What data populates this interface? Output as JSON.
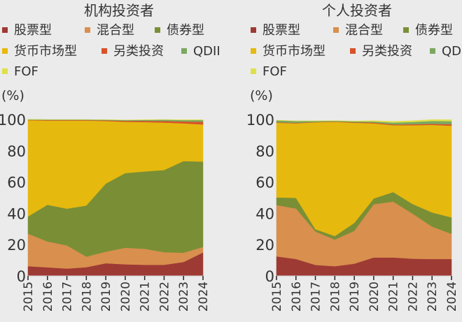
{
  "chart_data": [
    {
      "type": "area",
      "stacked": true,
      "title": "机构投资者",
      "ylabel": "(%)",
      "ylim": [
        0,
        100
      ],
      "yticks": [
        "0",
        "20",
        "40",
        "60",
        "80",
        "100"
      ],
      "categories": [
        "2015",
        "2016",
        "2017",
        "2018",
        "2019",
        "2020",
        "2021",
        "2022",
        "2023",
        "2024"
      ],
      "grid": false,
      "series": [
        {
          "name": "股票型",
          "color": "#9e3a34",
          "values": [
            6.2,
            5.5,
            4.7,
            5.6,
            8.1,
            7.4,
            7.1,
            7.1,
            8.9,
            15.0
          ]
        },
        {
          "name": "混合型",
          "color": "#d98f4e",
          "values": [
            20.8,
            16.5,
            14.8,
            6.7,
            7.4,
            10.6,
            10.2,
            8.1,
            5.9,
            3.5
          ]
        },
        {
          "name": "债券型",
          "color": "#7a8f35",
          "values": [
            11.0,
            23.5,
            23.5,
            32.7,
            43.5,
            47.7,
            49.5,
            52.5,
            58.6,
            54.6
          ]
        },
        {
          "name": "货币市场型",
          "color": "#e6b90f",
          "values": [
            61.5,
            53.8,
            56.3,
            54.3,
            40.0,
            32.8,
            31.5,
            30.3,
            24.1,
            23.7
          ]
        },
        {
          "name": "另类投资",
          "color": "#d9532a",
          "values": [
            0.2,
            0.3,
            0.3,
            0.3,
            0.4,
            0.6,
            0.8,
            1.0,
            1.2,
            1.7
          ]
        },
        {
          "name": "QDII",
          "color": "#7aa860",
          "values": [
            0.3,
            0.3,
            0.3,
            0.3,
            0.4,
            0.5,
            0.6,
            0.8,
            0.9,
            1.1
          ]
        },
        {
          "name": "FOF",
          "color": "#dfe04a",
          "values": [
            0,
            0,
            0,
            0,
            0,
            0.1,
            0.1,
            0.1,
            0.2,
            0.2
          ]
        }
      ]
    },
    {
      "type": "area",
      "stacked": true,
      "title": "个人投资者",
      "ylabel": "(%)",
      "ylim": [
        0,
        100
      ],
      "yticks": [
        "0",
        "20",
        "40",
        "60",
        "80",
        "100"
      ],
      "categories": [
        "2015",
        "2016",
        "2017",
        "2018",
        "2019",
        "2020",
        "2021",
        "2022",
        "2023",
        "2024"
      ],
      "grid": false,
      "series": [
        {
          "name": "股票型",
          "color": "#9e3a34",
          "values": [
            12.5,
            10.8,
            7.0,
            6.2,
            7.8,
            11.8,
            11.8,
            11.0,
            10.8,
            10.8
          ]
        },
        {
          "name": "混合型",
          "color": "#d98f4e",
          "values": [
            32.8,
            32.3,
            21.4,
            17.0,
            21.0,
            34.0,
            35.7,
            28.8,
            20.7,
            16.1
          ]
        },
        {
          "name": "债券型",
          "color": "#7a8f35",
          "values": [
            4.9,
            6.8,
            1.4,
            2.3,
            5.1,
            3.7,
            6.1,
            6.2,
            9.1,
            10.5
          ]
        },
        {
          "name": "货币市场型",
          "color": "#e6b90f",
          "values": [
            47.7,
            47.6,
            68.4,
            73.0,
            64.0,
            48.0,
            42.7,
            50.3,
            55.9,
            58.6
          ]
        },
        {
          "name": "另类投资",
          "color": "#d9532a",
          "values": [
            0.3,
            0.3,
            0.2,
            0.2,
            0.3,
            0.5,
            0.5,
            0.6,
            0.7,
            0.9
          ]
        },
        {
          "name": "QDII",
          "color": "#7aa860",
          "values": [
            1.2,
            1.2,
            0.6,
            0.4,
            0.6,
            0.7,
            1.2,
            1.5,
            1.8,
            2.0
          ]
        },
        {
          "name": "FOF",
          "color": "#dfe04a",
          "values": [
            0.1,
            0.1,
            0.1,
            0.1,
            0.2,
            0.5,
            0.8,
            0.8,
            0.9,
            0.9
          ]
        }
      ]
    }
  ]
}
